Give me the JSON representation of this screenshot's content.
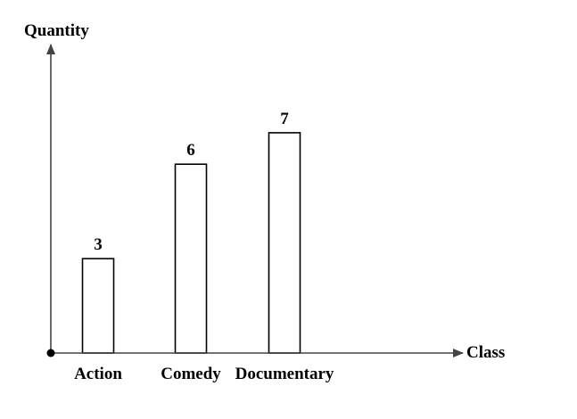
{
  "chart_data": {
    "type": "bar",
    "categories": [
      "Action",
      "Comedy",
      "Documentary"
    ],
    "values": [
      3,
      6,
      7
    ],
    "data_labels": [
      "3",
      "6",
      "7"
    ],
    "title": "",
    "xlabel": "Class",
    "ylabel": "Quantity",
    "ylim": [
      0,
      9
    ],
    "grid": false,
    "legend": "none",
    "colors": {
      "bar_fill": "#ffffff",
      "bar_stroke": "#000000",
      "axis": "#444444"
    }
  }
}
